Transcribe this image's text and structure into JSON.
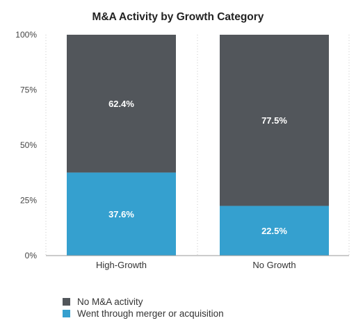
{
  "chart_data": {
    "type": "bar",
    "stacked": true,
    "title": "M&A Activity by Growth Category",
    "categories": [
      "High-Growth",
      "No Growth"
    ],
    "y_ticks": [
      "0%",
      "25%",
      "50%",
      "75%",
      "100%"
    ],
    "ylim": [
      0,
      100
    ],
    "series": [
      {
        "name": "Went through merger or acquisition",
        "values": [
          37.6,
          22.5
        ],
        "labels": [
          "37.6%",
          "22.5%"
        ],
        "color": "#35a0cf"
      },
      {
        "name": "No M&A activity",
        "values": [
          62.4,
          77.5
        ],
        "labels": [
          "62.4%",
          "77.5%"
        ],
        "color": "#52565b"
      }
    ],
    "legend_order": [
      "No M&A activity",
      "Went through merger or acquisition"
    ],
    "legend_position": "bottom-left",
    "grid": false
  }
}
